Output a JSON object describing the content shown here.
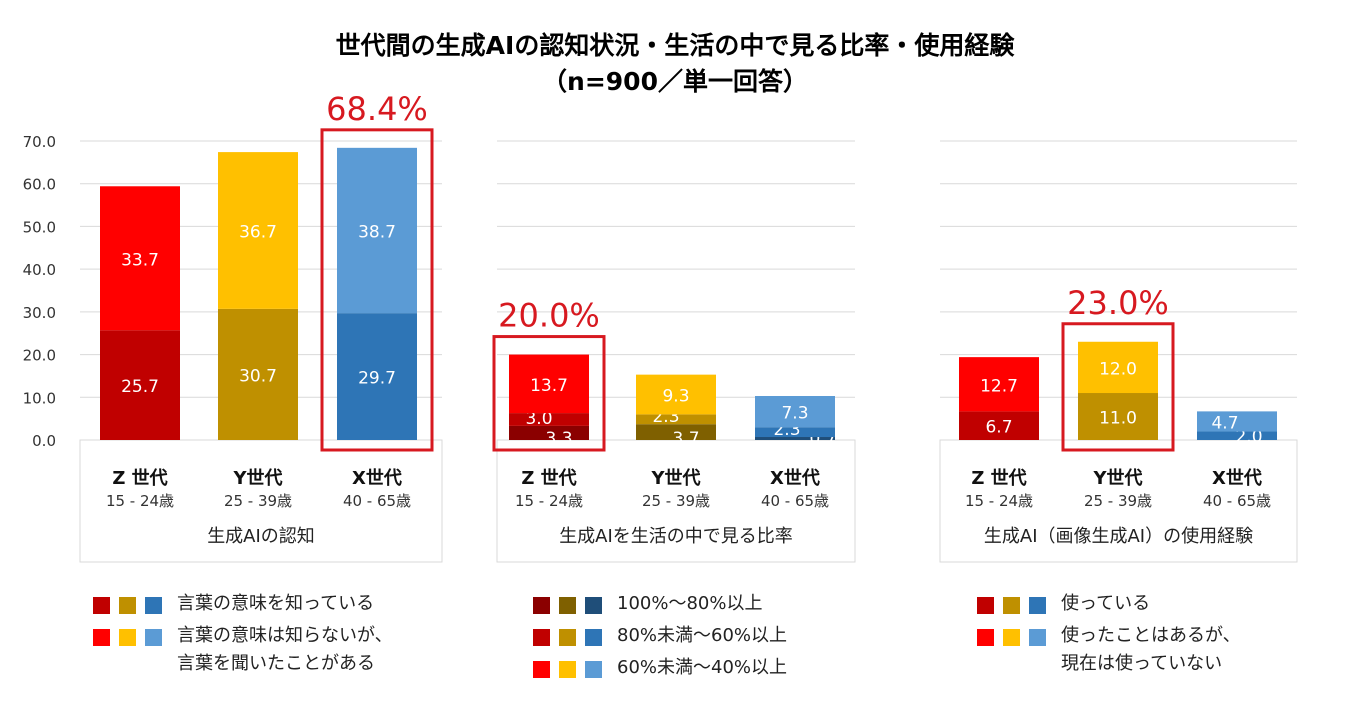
{
  "title": "世代間の生成AIの認知状況・生活の中で見る比率・使用経験",
  "subtitle": "（n=900／単一回答）",
  "colors": {
    "red": [
      "#8B0000",
      "#C00000",
      "#FF0000"
    ],
    "yellow": [
      "#7F6000",
      "#BF9000",
      "#FFC000"
    ],
    "blue": [
      "#1F4E79",
      "#2E75B6",
      "#5B9BD5"
    ],
    "highlight": "#D71920"
  },
  "chart_data": [
    {
      "type": "bar",
      "stacked": true,
      "xlabel": "生成AIの認知",
      "ylim": [
        0,
        70
      ],
      "yticks": [
        "0.0",
        "10.0",
        "20.0",
        "30.0",
        "40.0",
        "50.0",
        "60.0",
        "70.0"
      ],
      "grid": true,
      "categories": [
        {
          "name": "Z 世代",
          "age": "15 - 24歳"
        },
        {
          "name": "Y世代",
          "age": "25 - 39歳"
        },
        {
          "name": "X世代",
          "age": "40 - 65歳"
        }
      ],
      "series": [
        {
          "values": [
            25.7,
            30.7,
            29.7
          ]
        },
        {
          "values": [
            33.7,
            36.7,
            38.7
          ]
        }
      ],
      "highlight": {
        "index": 2,
        "label": "68.4%"
      }
    },
    {
      "type": "bar",
      "stacked": true,
      "xlabel": "生成AIを生活の中で見る比率",
      "ylim": [
        0,
        70
      ],
      "grid": true,
      "categories": [
        {
          "name": "Z 世代",
          "age": "15 - 24歳"
        },
        {
          "name": "Y世代",
          "age": "25 - 39歳"
        },
        {
          "name": "X世代",
          "age": "40 - 65歳"
        }
      ],
      "series": [
        {
          "values": [
            3.3,
            3.7,
            0.7
          ]
        },
        {
          "values": [
            3.0,
            2.3,
            2.3
          ]
        },
        {
          "values": [
            13.7,
            9.3,
            7.3
          ]
        }
      ],
      "highlight": {
        "index": 0,
        "label": "20.0%"
      }
    },
    {
      "type": "bar",
      "stacked": true,
      "xlabel": "生成AI（画像生成AI）の使用経験",
      "ylim": [
        0,
        70
      ],
      "grid": true,
      "categories": [
        {
          "name": "Z 世代",
          "age": "15 - 24歳"
        },
        {
          "name": "Y世代",
          "age": "25 - 39歳"
        },
        {
          "name": "X世代",
          "age": "40 - 65歳"
        }
      ],
      "series": [
        {
          "values": [
            6.7,
            11.0,
            2.0
          ]
        },
        {
          "values": [
            12.7,
            12.0,
            4.7
          ]
        }
      ],
      "highlight": {
        "index": 1,
        "label": "23.0%"
      }
    }
  ],
  "legends": [
    [
      "言葉の意味を知っている",
      "言葉の意味は知らないが、\n言葉を聞いたことがある"
    ],
    [
      "100%〜80%以上",
      "80%未満〜60%以上",
      "60%未満〜40%以上"
    ],
    [
      "使っている",
      "使ったことはあるが、\n現在は使っていない"
    ]
  ]
}
